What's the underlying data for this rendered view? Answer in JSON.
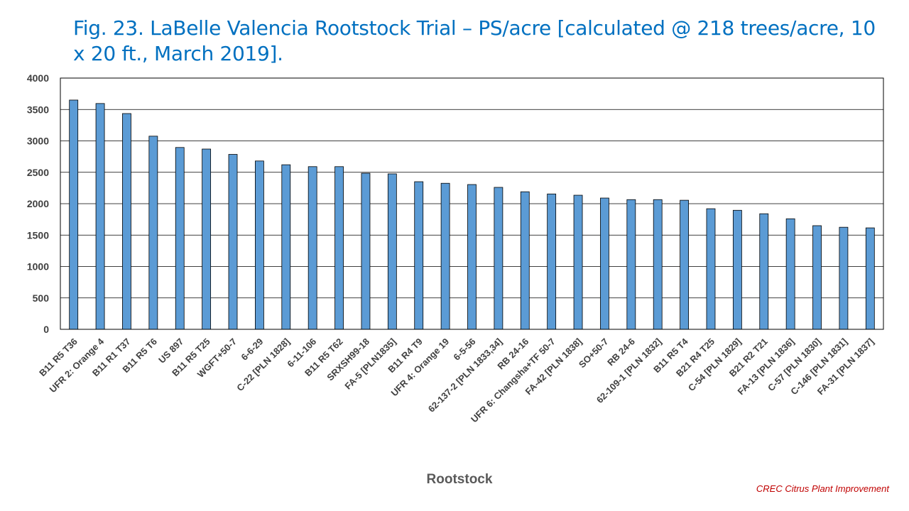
{
  "page": {
    "title": "Fig. 23. LaBelle Valencia Rootstock Trial – PS/acre [calculated @ 218 trees/acre, 10 x 20 ft., March 2019].",
    "credit": "CREC Citrus Plant Improvement"
  },
  "colors": {
    "title": "#0070c0",
    "bar_fill": "#5b9bd5",
    "bar_stroke": "#000000",
    "axis_text": "#404040",
    "gridline": "#000000",
    "credit": "#c00000"
  },
  "chart_data": {
    "type": "bar",
    "title": "Fig. 23. LaBelle Valencia Rootstock Trial – PS/acre [calculated @ 218 trees/acre, 10 x 20 ft., March 2019].",
    "xlabel": "Rootstock",
    "ylabel": "",
    "ylim": [
      0,
      4000
    ],
    "yticks": [
      0,
      500,
      1000,
      1500,
      2000,
      2500,
      3000,
      3500,
      4000
    ],
    "grid": true,
    "legend": "none",
    "categories": [
      "B11 R5 T36",
      "UFR 2: Orange 4",
      "B11 R1 T37",
      "B11 R5 T6",
      "US 897",
      "B11 R5 T25",
      "WGFT+50-7",
      "6-6-29",
      "C-22 [PLN 1828]",
      "6-11-106",
      "B11 R5 T62",
      "SRXSH99-18",
      "FA-5 [PLN1835]",
      "B11 R4 T9",
      "UFR 4: Orange 19",
      "6-5-56",
      "62-137-2 [PLN 1833,34]",
      "RB 24-16",
      "UFR 6: Changsha+TF 50-7",
      "FA-42 [PLN 1838]",
      "SO+50-7",
      "RB 24-6",
      "62-109-1 [PLN 1832]",
      "B11 R5 T4",
      "B21 R4 T25",
      "C-54 [PLN 1829]",
      "B21 R2 T21",
      "FA-13 [PLN 1836]",
      "C-57 [PLN 1830]",
      "C-146 [PLN 1831]",
      "FA-31 [PLN 1837]"
    ],
    "values": [
      3650,
      3595,
      3435,
      3075,
      2895,
      2870,
      2785,
      2680,
      2620,
      2590,
      2590,
      2485,
      2475,
      2350,
      2325,
      2305,
      2260,
      2190,
      2155,
      2135,
      2090,
      2065,
      2065,
      2055,
      1920,
      1895,
      1840,
      1760,
      1650,
      1625,
      1615
    ]
  }
}
